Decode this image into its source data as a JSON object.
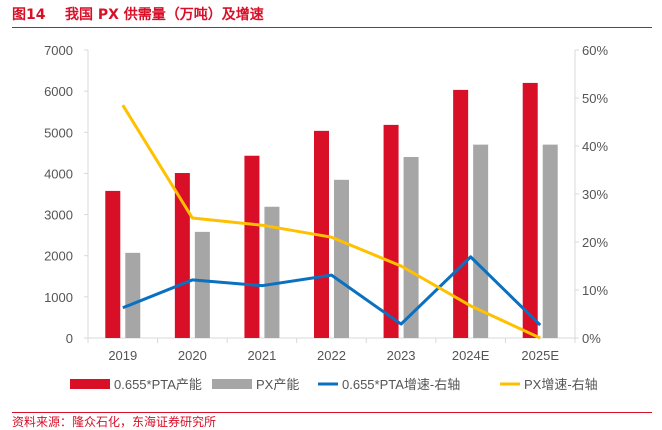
{
  "header": {
    "title": "图14    我国 PX 供需量（万吨）及增速"
  },
  "footer": {
    "source": "资料来源：隆众石化，东海证券研究所"
  },
  "colors": {
    "red": "#d90f28",
    "gray": "#a6a6a6",
    "blue": "#0a70c0",
    "yellow": "#ffc000",
    "accent": "#d90f28"
  },
  "chart_data": {
    "type": "bar",
    "title": "我国 PX 供需量（万吨）及增速",
    "categories": [
      "2019",
      "2020",
      "2021",
      "2022",
      "2023",
      "2024E",
      "2025E"
    ],
    "left_axis": {
      "min": 0,
      "max": 7000,
      "step": 1000,
      "ticks": [
        "0",
        "1000",
        "2000",
        "3000",
        "4000",
        "5000",
        "6000",
        "7000"
      ]
    },
    "right_axis": {
      "min": 0,
      "max": 60,
      "step": 10,
      "ticks": [
        "0%",
        "10%",
        "20%",
        "30%",
        "40%",
        "50%",
        "60%"
      ]
    },
    "grid": false,
    "legend_position": "bottom",
    "series": [
      {
        "name": "0.655*PTA产能",
        "type": "bar",
        "axis": "left",
        "color": "#d90f28",
        "values": [
          3575,
          4010,
          4430,
          5035,
          5180,
          6030,
          6200
        ]
      },
      {
        "name": "PX产能",
        "type": "bar",
        "axis": "left",
        "color": "#a6a6a6",
        "values": [
          2070,
          2580,
          3190,
          3845,
          4400,
          4700,
          4700
        ]
      },
      {
        "name": "0.655*PTA增速-右轴",
        "type": "line",
        "axis": "right",
        "color": "#0a70c0",
        "values": [
          6.3,
          12.1,
          10.9,
          13.1,
          2.9,
          16.9,
          2.7
        ]
      },
      {
        "name": "PX增速-右轴",
        "type": "line",
        "axis": "right",
        "color": "#ffc000",
        "values": [
          48.5,
          25.0,
          23.5,
          21.0,
          15.0,
          6.7,
          0.0
        ]
      }
    ]
  }
}
